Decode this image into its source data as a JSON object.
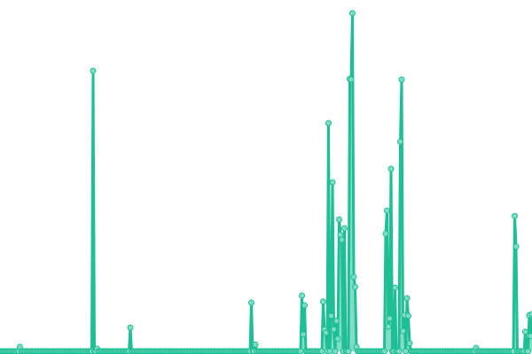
{
  "chart_data": {
    "type": "line",
    "title": "",
    "xlabel": "",
    "ylabel": "",
    "axes_visible": false,
    "grid": false,
    "legend": "none",
    "xlim": [
      0,
      400
    ],
    "ylim": [
      0,
      100
    ],
    "colors": {
      "line": "#1fbf96",
      "marker_fill": "#7fdcc4",
      "marker_stroke": "#1fbf96"
    },
    "x_start": 0,
    "x_step": 1,
    "values": [
      0,
      0,
      0,
      0,
      0,
      0,
      0,
      0,
      0,
      0,
      0,
      0,
      0,
      0,
      0,
      1.3,
      0,
      0,
      0,
      0,
      0,
      0,
      0,
      0,
      0,
      0,
      0,
      0,
      0,
      0,
      0,
      0,
      0,
      0,
      0,
      0,
      0,
      0,
      0,
      0,
      0,
      0,
      0,
      0,
      0,
      0,
      0,
      0,
      0,
      0,
      0,
      0,
      0,
      0,
      0,
      0,
      0,
      0,
      0,
      0,
      0,
      0,
      0,
      0,
      0,
      0,
      0,
      0,
      0,
      0,
      83,
      0,
      0,
      0.8,
      0,
      0,
      0,
      0,
      0,
      0,
      0,
      0,
      0,
      0,
      0,
      0,
      0,
      0,
      0,
      0,
      0,
      0,
      0,
      0,
      0,
      0,
      0,
      0,
      7,
      0,
      0,
      0,
      0,
      0,
      0,
      0,
      0,
      0,
      0,
      0,
      0,
      0,
      0,
      0,
      0,
      0,
      0,
      0,
      0,
      0,
      0,
      0,
      0,
      0,
      0,
      0,
      0,
      0,
      0,
      0,
      0,
      0,
      0,
      0,
      0,
      0,
      0,
      0,
      0,
      0,
      0,
      0,
      0,
      0,
      0,
      0,
      0,
      0,
      0,
      0,
      0,
      0,
      0,
      0,
      0,
      0,
      0,
      0,
      0,
      0,
      0,
      0,
      0,
      0,
      0,
      0,
      0,
      0,
      0,
      0,
      0,
      0,
      0,
      0,
      0,
      0,
      0,
      0,
      0,
      0,
      0,
      0,
      0,
      0,
      0,
      0,
      0,
      0,
      0,
      14.4,
      0,
      0,
      2,
      0,
      0,
      0,
      0,
      0,
      0,
      0,
      0,
      0,
      0,
      0,
      0,
      0,
      0,
      0,
      0,
      0,
      0,
      0,
      0,
      0,
      0,
      0,
      0,
      0,
      0,
      0,
      0,
      0,
      0,
      0,
      0,
      0,
      0,
      16.5,
      5,
      13.6,
      0,
      0,
      0,
      0,
      0,
      0,
      0,
      0,
      0,
      0,
      0,
      0,
      0,
      14.7,
      6.5,
      5.5,
      0,
      67.5,
      0,
      10.5,
      50,
      6.5,
      0,
      9,
      3.7,
      39,
      34.5,
      33,
      0,
      36.4,
      0,
      0,
      0,
      80.6,
      80.4,
      100,
      22,
      19,
      1.3,
      0,
      0,
      0,
      0,
      0,
      0,
      0,
      0,
      0,
      0,
      0,
      0,
      0,
      0,
      0,
      0,
      0,
      0,
      0,
      0,
      0,
      34.8,
      41.6,
      7.3,
      9.7,
      54,
      0,
      0,
      18.8,
      0,
      0,
      0,
      62,
      80.4,
      6,
      10.7,
      0,
      15.7,
      10.5,
      2.4,
      0,
      0,
      0,
      0,
      0,
      0,
      0,
      0,
      0,
      0,
      0,
      0,
      0,
      0,
      0,
      0,
      0,
      0,
      0,
      0,
      0,
      0,
      0,
      0,
      0,
      0,
      0,
      0,
      0,
      0,
      0,
      0,
      0,
      0,
      0,
      0,
      0,
      0,
      0,
      0,
      0,
      0,
      0,
      0,
      0,
      0,
      0,
      0,
      0,
      1,
      0,
      0,
      0,
      0,
      0,
      0,
      0,
      0,
      0,
      0,
      0,
      0,
      0,
      0,
      0,
      0,
      0,
      0,
      0,
      0,
      0,
      0,
      0,
      0,
      0,
      0,
      0,
      0,
      40,
      31,
      0,
      0,
      0,
      0,
      0,
      0,
      5.8,
      0,
      0,
      10.7,
      4.5,
      11
    ]
  }
}
